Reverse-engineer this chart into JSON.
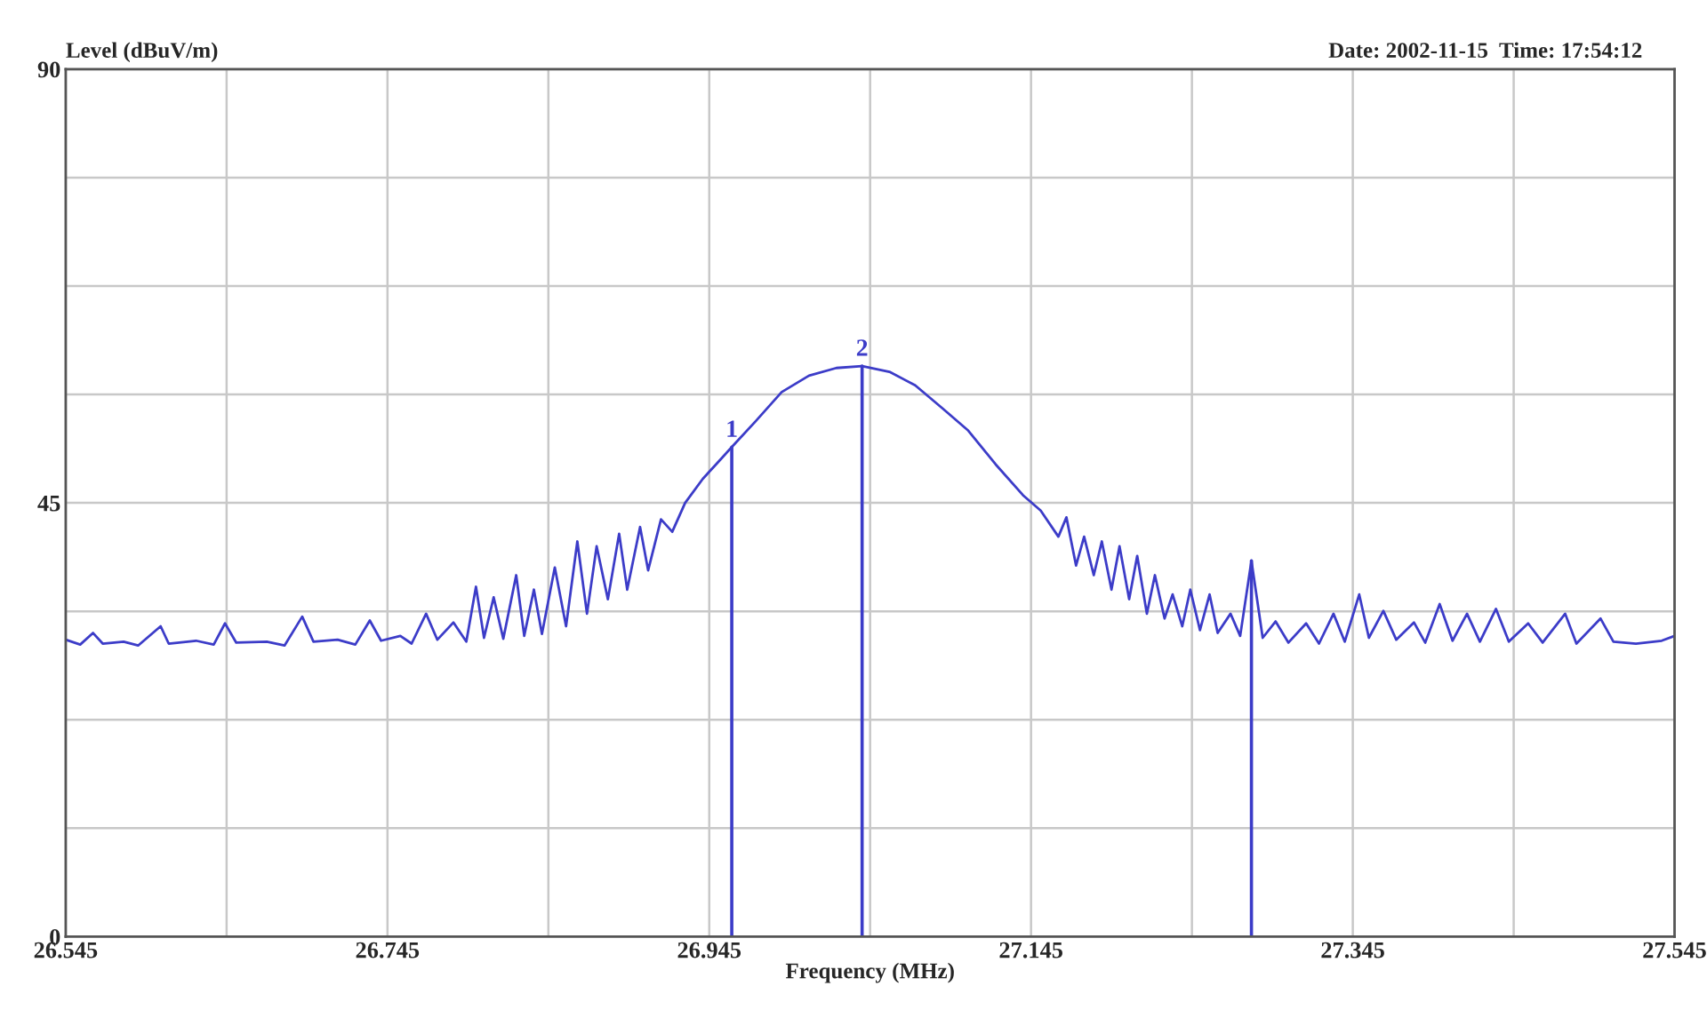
{
  "chart_data": {
    "type": "line",
    "ylabel": "Level (dBuV/m)",
    "subtitle": "Date: 2002-11-15  Time: 17:54:12",
    "xlabel": "Frequency (MHz)",
    "series": [
      {
        "color": "#3c3cc8",
        "x": [
          26.545,
          26.554,
          26.562,
          26.568,
          26.581,
          26.59,
          26.604,
          26.609,
          26.626,
          26.637,
          26.644,
          26.651,
          26.67,
          26.681,
          26.692,
          26.699,
          26.714,
          26.725,
          26.734,
          26.741,
          26.753,
          26.76,
          26.769,
          26.776,
          26.786,
          26.794,
          26.8,
          26.805,
          26.811,
          26.817,
          26.825,
          26.83,
          26.836,
          26.841,
          26.849,
          26.856,
          26.863,
          26.869,
          26.875,
          26.882,
          26.889,
          26.894,
          26.902,
          26.907,
          26.915,
          26.922,
          26.93,
          26.941,
          26.952,
          26.959,
          26.974,
          26.99,
          27.007,
          27.024,
          27.04,
          27.057,
          27.073,
          27.09,
          27.106,
          27.123,
          27.14,
          27.151,
          27.162,
          27.167,
          27.173,
          27.178,
          27.184,
          27.189,
          27.195,
          27.2,
          27.206,
          27.211,
          27.217,
          27.222,
          27.228,
          27.233,
          27.239,
          27.244,
          27.25,
          27.256,
          27.261,
          27.269,
          27.275,
          27.282,
          27.289,
          27.297,
          27.305,
          27.316,
          27.324,
          27.333,
          27.34,
          27.349,
          27.355,
          27.364,
          27.372,
          27.383,
          27.39,
          27.399,
          27.407,
          27.416,
          27.424,
          27.434,
          27.442,
          27.454,
          27.463,
          27.477,
          27.484,
          27.499,
          27.507,
          27.521,
          27.537,
          27.545
        ],
        "values": [
          30.8,
          30.3,
          31.5,
          30.4,
          30.6,
          30.2,
          32.2,
          30.4,
          30.7,
          30.3,
          32.5,
          30.5,
          30.6,
          30.2,
          33.2,
          30.6,
          30.8,
          30.3,
          32.8,
          30.7,
          31.2,
          30.4,
          33.5,
          30.8,
          32.6,
          30.6,
          36.3,
          31,
          35.2,
          30.9,
          37.5,
          31.2,
          36,
          31.4,
          38.3,
          32.2,
          41,
          33.5,
          40.5,
          35,
          41.8,
          36,
          42.5,
          38,
          43.3,
          42,
          45,
          47.5,
          49.5,
          50.8,
          53.5,
          56.5,
          58.2,
          59,
          59.2,
          58.6,
          57.2,
          54.8,
          52.5,
          49,
          45.8,
          44.2,
          41.5,
          43.5,
          38.5,
          41.5,
          37.5,
          41,
          36,
          40.5,
          35,
          39.5,
          33.5,
          37.5,
          33,
          35.5,
          32.2,
          36,
          31.8,
          35.5,
          31.5,
          33.5,
          31.2,
          39,
          31,
          32.7,
          30.5,
          32.5,
          30.4,
          33.5,
          30.6,
          35.5,
          31,
          33.8,
          30.8,
          32.6,
          30.5,
          34.5,
          30.7,
          33.5,
          30.6,
          34,
          30.6,
          32.5,
          30.5,
          33.5,
          30.4,
          33,
          30.6,
          30.4,
          30.7,
          31.2
        ]
      }
    ],
    "ref_lines": [
      {
        "axis": "x",
        "value": 26.959,
        "color": "#3c3cc8"
      },
      {
        "axis": "x",
        "value": 27.04,
        "color": "#3c3cc8"
      },
      {
        "axis": "x",
        "value": 27.282,
        "color": "#3c3cc8"
      }
    ],
    "annotations": [
      {
        "text": "1",
        "x": 26.959,
        "y": 50.8
      },
      {
        "text": "2",
        "x": 27.04,
        "y": 59.2
      }
    ],
    "xlim": [
      26.545,
      27.545
    ],
    "xticks": [
      26.545,
      {
        "value": 26.645,
        "label": null
      },
      26.745,
      {
        "value": 26.845,
        "label": null
      },
      26.945,
      {
        "value": 27.045,
        "label": null
      },
      27.145,
      {
        "value": 27.245,
        "label": null
      },
      27.345,
      {
        "value": 27.445,
        "label": null
      },
      27.545
    ],
    "ylim": [
      0,
      90
    ],
    "yticks": [
      0,
      {
        "value": 11.25,
        "label": null
      },
      {
        "value": 22.5,
        "label": null
      },
      {
        "value": 33.75,
        "label": null
      },
      45,
      {
        "value": 56.25,
        "label": null
      },
      {
        "value": 67.5,
        "label": null
      },
      {
        "value": 78.75,
        "label": null
      },
      90
    ],
    "grid": true,
    "line_style": "solid",
    "marker": "none",
    "legend": false
  }
}
